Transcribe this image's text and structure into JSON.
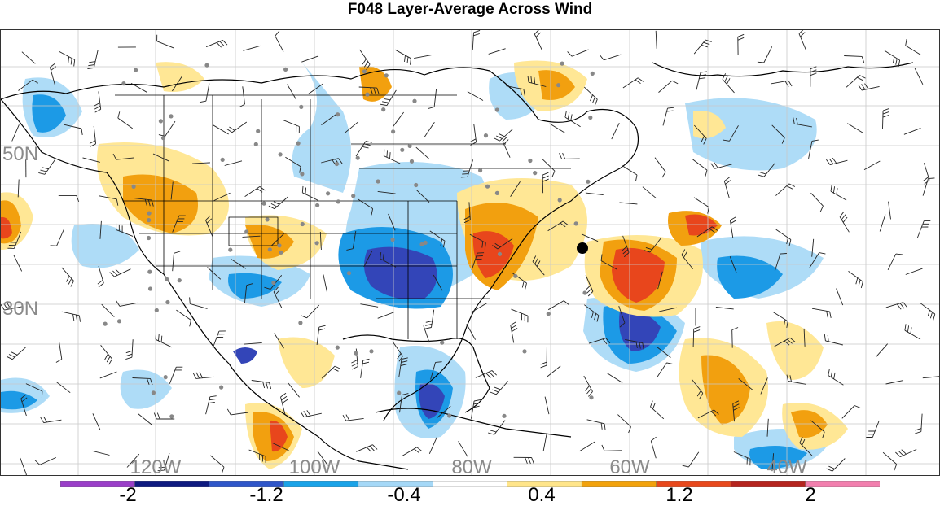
{
  "title": "F048 Layer-Average Across Wind",
  "map": {
    "lat_labels": [
      "50N",
      "30N"
    ],
    "lon_labels": [
      "120W",
      "100W",
      "80W",
      "60W",
      "40W"
    ],
    "grid_color": "#c8c8c8",
    "label_color": "#8a8a8a"
  },
  "colorbar": {
    "colors": [
      "#9a3fc8",
      "#0e1a80",
      "#2f56c9",
      "#1aa3e8",
      "#a5d8f7",
      "#ffffff",
      "#ffe58a",
      "#f2a20c",
      "#e8481c",
      "#b5241e",
      "#f27fae"
    ],
    "labels": [
      "-2",
      "-1.2",
      "-0.4",
      "0.4",
      "1.2",
      "2"
    ]
  },
  "legend_palette": {
    "deep_blue": "#3345b8",
    "blue": "#1c9ae6",
    "light_blue": "#aedcf7",
    "light_yellow": "#ffe795",
    "orange": "#f2a00f",
    "red": "#e8461c"
  }
}
